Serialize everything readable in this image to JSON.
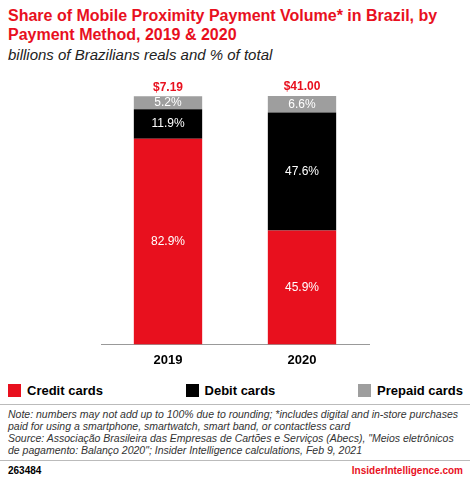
{
  "chart_data": {
    "type": "bar",
    "title": "Share of Mobile Proximity Payment Volume* in Brazil, by Payment Method, 2019 & 2020",
    "subtitle": "billions of Brazilians reals and % of total",
    "categories": [
      "2019",
      "2020"
    ],
    "series": [
      {
        "name": "Credit cards",
        "color": "#e8101e",
        "values": [
          82.9,
          45.9
        ],
        "value_labels": [
          "82.9%",
          "45.9%"
        ]
      },
      {
        "name": "Debit cards",
        "color": "#000000",
        "values": [
          11.9,
          47.6
        ],
        "value_labels": [
          "11.9%",
          "47.6%"
        ]
      },
      {
        "name": "Prepaid cards",
        "color": "#9e9e9e",
        "values": [
          5.2,
          6.6
        ],
        "value_labels": [
          "5.2%",
          "6.6%"
        ]
      }
    ],
    "total_labels": [
      "$7.19",
      "$41.00"
    ],
    "stacked": true,
    "data_labels": true,
    "tick_labels": "x",
    "grid": false,
    "legend": "bottom",
    "ylim": [
      0,
      100.1
    ],
    "notes": [
      "Note: numbers may not add up to 100% due to rounding; *includes digital and in-store purchases paid for using a smartphone, smartwatch, smart band, or contactless card",
      "Source: Associação Brasileira das Empresas de Cartões e Serviços (Abecs), \"Meios eletrônicos de pagamento: Balanço 2020\"; Insider Intelligence calculations, Feb 9, 2021"
    ],
    "chart_id": "263484",
    "site": "InsiderIntelligence.com"
  }
}
